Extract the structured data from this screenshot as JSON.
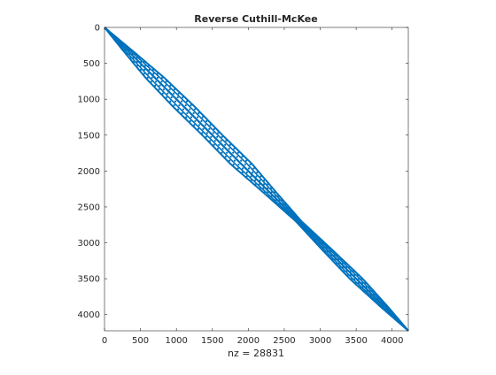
{
  "chart_data": {
    "type": "spy",
    "title": "Reverse Cuthill-McKee",
    "xlabel": "nz = 28831",
    "ylabel": "",
    "xlim": [
      0,
      4225
    ],
    "ylim": [
      0,
      4225
    ],
    "y_reversed": true,
    "x_ticks": [
      0,
      500,
      1000,
      1500,
      2000,
      2500,
      3000,
      3500,
      4000
    ],
    "y_ticks": [
      0,
      500,
      1000,
      1500,
      2000,
      2500,
      3000,
      3500,
      4000
    ],
    "x_tick_labels": [
      "0",
      "500",
      "1000",
      "1500",
      "2000",
      "2500",
      "3000",
      "3500",
      "4000"
    ],
    "y_tick_labels": [
      "0",
      "500",
      "1000",
      "1500",
      "2000",
      "2500",
      "3000",
      "3500",
      "4000"
    ],
    "grid": false,
    "marker_color": "#0072BD",
    "band_envelope": [
      {
        "row": 0,
        "half_width": 0
      },
      {
        "row": 300,
        "half_width": 60
      },
      {
        "row": 700,
        "half_width": 130
      },
      {
        "row": 1100,
        "half_width": 150
      },
      {
        "row": 1500,
        "half_width": 140
      },
      {
        "row": 1900,
        "half_width": 150
      },
      {
        "row": 2300,
        "half_width": 90
      },
      {
        "row": 2700,
        "half_width": 40
      },
      {
        "row": 3100,
        "half_width": 70
      },
      {
        "row": 3500,
        "half_width": 90
      },
      {
        "row": 3900,
        "half_width": 50
      },
      {
        "row": 4225,
        "half_width": 0
      }
    ]
  }
}
